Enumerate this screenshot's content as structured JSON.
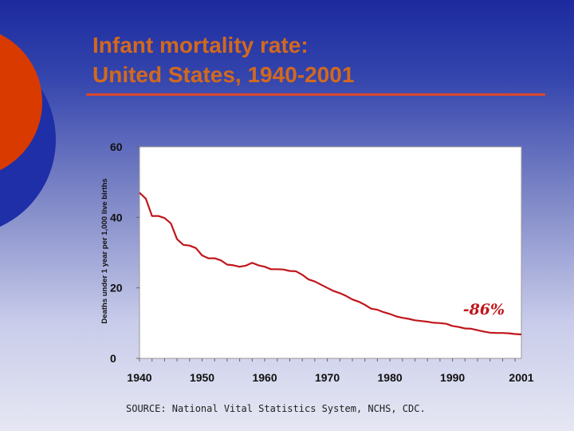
{
  "slide": {
    "title_line1": "Infant mortality rate:",
    "title_line2": "United States, 1940-2001",
    "source": "SOURCE: National Vital Statistics System, NCHS, CDC.",
    "colors": {
      "title": "#d2691e",
      "rule": "#d9462b",
      "series": "#c0161c",
      "deco_outer": "#1e2fa8",
      "deco_inner": "#d93a00",
      "plot_background": "#ffffff"
    }
  },
  "chart_data": {
    "type": "line",
    "title": "",
    "xlabel": "",
    "ylabel": "Deaths under 1 year per 1,000 live births",
    "xlim": [
      1940,
      2001
    ],
    "ylim": [
      0,
      60
    ],
    "x_ticks": [
      "1940",
      "1950",
      "1960",
      "1970",
      "1980",
      "1990",
      "2001"
    ],
    "y_ticks": [
      "0",
      "20",
      "40",
      "60"
    ],
    "grid": false,
    "annotation": {
      "text": "-86%",
      "x": 1995,
      "y": 14
    },
    "series": [
      {
        "x": [
          1940,
          1941,
          1942,
          1943,
          1944,
          1945,
          1946,
          1947,
          1948,
          1949,
          1950,
          1951,
          1952,
          1953,
          1954,
          1955,
          1956,
          1957,
          1958,
          1959,
          1960,
          1961,
          1962,
          1963,
          1964,
          1965,
          1966,
          1967,
          1968,
          1969,
          1970,
          1971,
          1972,
          1973,
          1974,
          1975,
          1976,
          1977,
          1978,
          1979,
          1980,
          1981,
          1982,
          1983,
          1984,
          1985,
          1986,
          1987,
          1988,
          1989,
          1990,
          1991,
          1992,
          1993,
          1994,
          1995,
          1996,
          1997,
          1998,
          1999,
          2000,
          2001
        ],
        "values": [
          47.0,
          45.3,
          40.4,
          40.4,
          39.8,
          38.3,
          33.8,
          32.2,
          32.0,
          31.3,
          29.2,
          28.4,
          28.4,
          27.8,
          26.6,
          26.4,
          26.0,
          26.3,
          27.1,
          26.4,
          26.0,
          25.3,
          25.3,
          25.2,
          24.8,
          24.7,
          23.7,
          22.4,
          21.8,
          20.9,
          20.0,
          19.1,
          18.5,
          17.7,
          16.7,
          16.1,
          15.2,
          14.1,
          13.8,
          13.1,
          12.6,
          11.9,
          11.5,
          11.2,
          10.8,
          10.6,
          10.4,
          10.1,
          10.0,
          9.8,
          9.2,
          8.9,
          8.5,
          8.4,
          8.0,
          7.6,
          7.3,
          7.2,
          7.2,
          7.1,
          6.9,
          6.8
        ]
      }
    ]
  }
}
